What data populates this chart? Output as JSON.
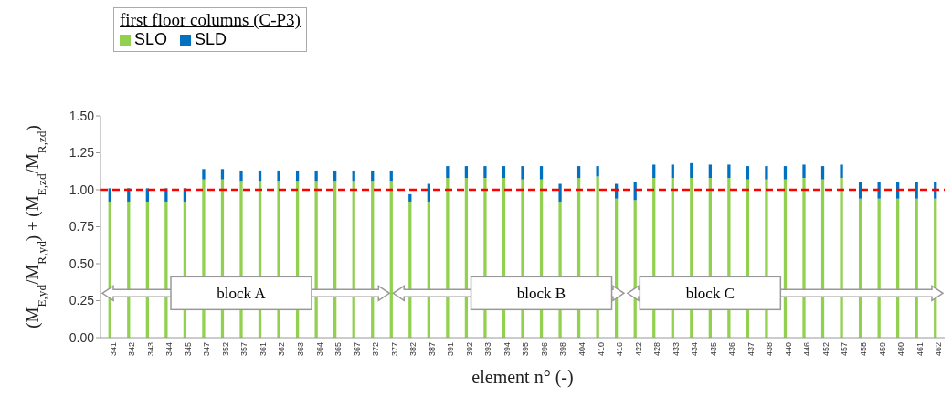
{
  "chart_data": {
    "type": "bar",
    "stacked": true,
    "legend_title": "first floor columns (C-P3)",
    "xlabel": "element n° (-)",
    "ylabel": "(M$_{E,yd}$/M$_{R,yd}$) + (M$_{E,zd}$/M$_{R,zd}$)",
    "categories": [
      "341",
      "342",
      "343",
      "344",
      "345",
      "347",
      "352",
      "357",
      "361",
      "362",
      "363",
      "364",
      "365",
      "367",
      "372",
      "377",
      "382",
      "387",
      "391",
      "392",
      "393",
      "394",
      "395",
      "396",
      "398",
      "404",
      "410",
      "416",
      "422",
      "428",
      "433",
      "434",
      "435",
      "436",
      "437",
      "438",
      "440",
      "446",
      "452",
      "457",
      "458",
      "459",
      "460",
      "461",
      "462"
    ],
    "series": [
      {
        "name": "SLO",
        "color": "#92d050",
        "values": [
          0.92,
          0.92,
          0.92,
          0.92,
          0.92,
          1.07,
          1.07,
          1.06,
          1.06,
          1.06,
          1.06,
          1.06,
          1.06,
          1.06,
          1.06,
          1.06,
          0.92,
          0.92,
          1.08,
          1.08,
          1.08,
          1.08,
          1.07,
          1.07,
          0.92,
          1.08,
          1.09,
          0.94,
          0.93,
          1.08,
          1.08,
          1.08,
          1.08,
          1.08,
          1.07,
          1.07,
          1.07,
          1.08,
          1.07,
          1.08,
          0.94,
          0.94,
          0.94,
          0.94,
          0.94
        ]
      },
      {
        "name": "SLD",
        "color": "#0070c0",
        "values": [
          0.09,
          0.09,
          0.09,
          0.09,
          0.09,
          0.07,
          0.07,
          0.07,
          0.07,
          0.07,
          0.07,
          0.07,
          0.07,
          0.07,
          0.07,
          0.07,
          0.05,
          0.12,
          0.08,
          0.08,
          0.08,
          0.08,
          0.09,
          0.09,
          0.12,
          0.08,
          0.07,
          0.1,
          0.12,
          0.09,
          0.09,
          0.1,
          0.09,
          0.09,
          0.09,
          0.09,
          0.09,
          0.09,
          0.09,
          0.09,
          0.11,
          0.11,
          0.11,
          0.11,
          0.11
        ]
      }
    ],
    "ylim": [
      0,
      1.5
    ],
    "yticks": [
      {
        "value": 0,
        "label": "0.00"
      },
      {
        "value": 0.25,
        "label": "0.25"
      },
      {
        "value": 0.5,
        "label": "0.50"
      },
      {
        "value": 0.75,
        "label": "0.75"
      },
      {
        "value": 1,
        "label": "1.00"
      },
      {
        "value": 1.25,
        "label": "1.25"
      },
      {
        "value": 1.5,
        "label": "1.50"
      }
    ],
    "ref_lines": [
      {
        "axis": "y",
        "value": 1,
        "color": "#ff0000",
        "line_style": "dashed"
      }
    ],
    "annotations": [
      {
        "text": "block A",
        "x": "357",
        "y": 0.25
      },
      {
        "text": "block B",
        "x": "396",
        "y": 0.25
      },
      {
        "text": "block C",
        "x": "435",
        "y": 0.25
      }
    ],
    "legend": "top left"
  }
}
